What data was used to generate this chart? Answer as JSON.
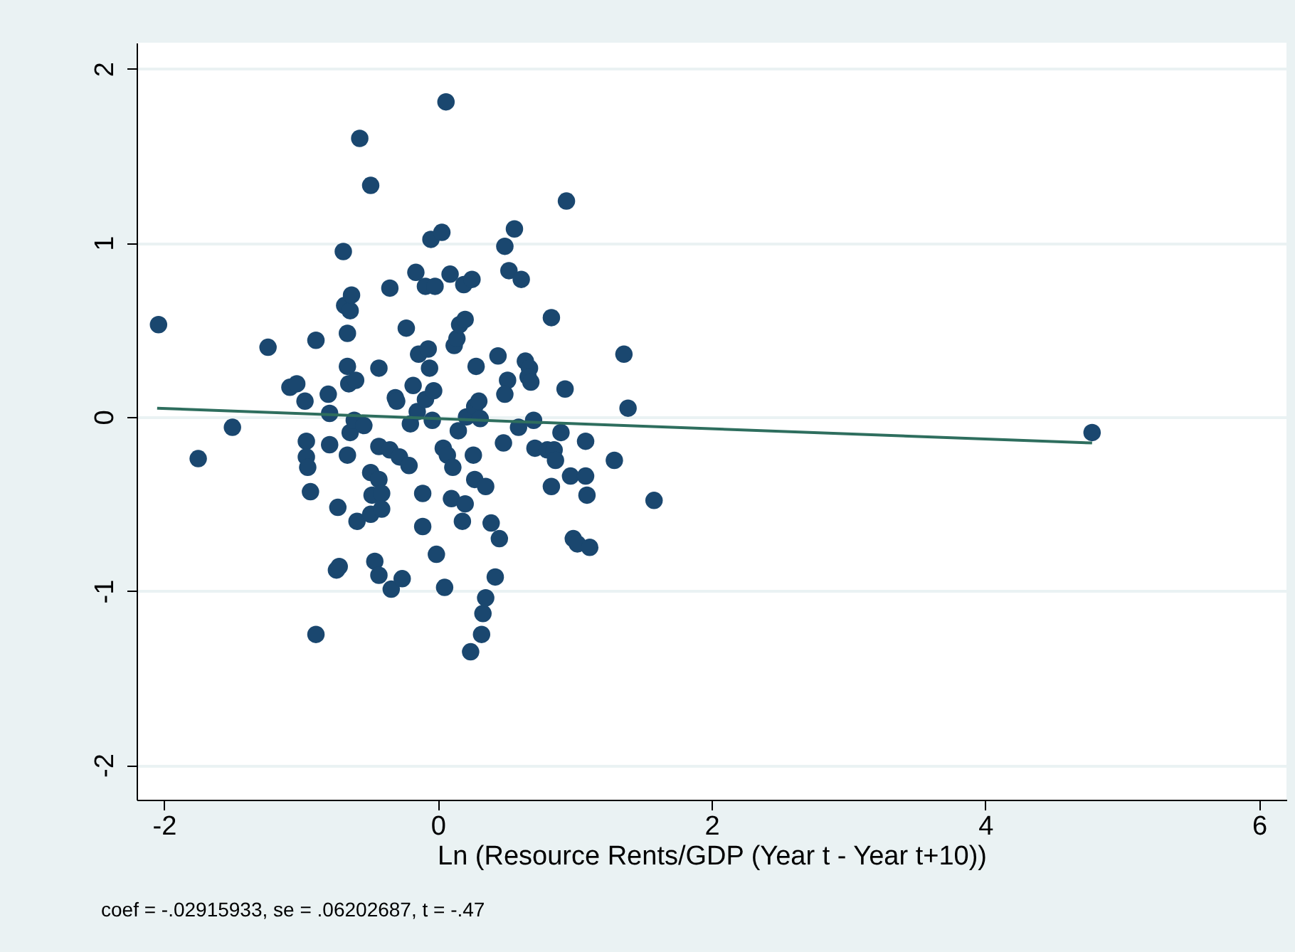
{
  "chart_data": {
    "type": "scatter",
    "xlabel": "Ln (Resource Rents/GDP (Year t - Year t+10))",
    "annotations": [
      "coef = -.02915933, se = .06202687, t = -.47"
    ],
    "xlim": [
      -2.2,
      6.2
    ],
    "ylim": [
      -2.2,
      2.15
    ],
    "xticks": [
      -2,
      0,
      2,
      4,
      6
    ],
    "yticks": [
      -2,
      -1,
      0,
      1,
      2
    ],
    "grid": "y",
    "series": [
      {
        "marker": "circle",
        "color": "#1a476f",
        "x": [
          -2.04,
          -1.75,
          -1.5,
          -1.24,
          -1.08,
          -1.03,
          -0.97,
          -0.96,
          -0.96,
          -0.95,
          -0.93,
          -0.89,
          -0.89,
          -0.8,
          -0.79,
          -0.79,
          -0.73,
          -0.74,
          -0.72,
          -0.69,
          -0.68,
          -0.66,
          -0.66,
          -0.64,
          -0.63,
          -0.65,
          -0.6,
          -0.64,
          -0.66,
          -0.61,
          -0.59,
          -0.57,
          -0.54,
          -0.49,
          -0.49,
          -0.48,
          -0.49,
          -0.46,
          -0.43,
          -0.43,
          -0.41,
          -0.41,
          -0.43,
          -0.43,
          -0.35,
          -0.34,
          -0.35,
          -0.31,
          -0.3,
          -0.28,
          -0.26,
          -0.23,
          -0.21,
          -0.2,
          -0.18,
          -0.16,
          -0.15,
          -0.14,
          -0.11,
          -0.11,
          -0.09,
          -0.09,
          -0.07,
          -0.06,
          -0.05,
          -0.04,
          -0.03,
          -0.02,
          -0.01,
          0.03,
          0.04,
          0.05,
          0.06,
          0.07,
          0.09,
          0.1,
          0.11,
          0.12,
          0.14,
          0.16,
          0.15,
          0.18,
          0.2,
          0.2,
          0.19,
          0.21,
          0.24,
          0.25,
          0.26,
          0.27,
          0.28,
          0.27,
          0.3,
          0.31,
          0.32,
          0.33,
          0.35,
          0.35,
          0.39,
          0.42,
          0.45,
          0.44,
          0.48,
          0.49,
          0.51,
          0.49,
          0.52,
          0.56,
          0.59,
          0.61,
          0.64,
          0.67,
          0.66,
          0.68,
          0.7,
          0.71,
          0.8,
          0.83,
          0.83,
          0.85,
          0.86,
          0.9,
          0.93,
          0.94,
          0.97,
          0.99,
          1.02,
          1.08,
          1.08,
          1.09,
          1.11,
          1.29,
          1.36,
          1.39,
          1.58,
          4.78
        ],
        "values": [
          0.53,
          -0.24,
          -0.06,
          0.4,
          0.17,
          0.19,
          0.09,
          -0.14,
          -0.23,
          -0.29,
          -0.43,
          0.44,
          -1.25,
          0.13,
          0.02,
          -0.16,
          -0.52,
          -0.88,
          -0.86,
          0.95,
          0.64,
          0.48,
          0.29,
          0.61,
          0.7,
          0.19,
          0.21,
          -0.09,
          -0.22,
          -0.02,
          -0.6,
          1.6,
          -0.05,
          1.33,
          -0.32,
          -0.45,
          -0.56,
          -0.83,
          -0.17,
          -0.36,
          -0.44,
          -0.53,
          -0.91,
          0.28,
          0.74,
          -0.99,
          -0.19,
          0.11,
          0.09,
          -0.23,
          -0.93,
          0.51,
          -0.28,
          -0.04,
          0.18,
          0.83,
          0.03,
          0.36,
          -0.63,
          -0.44,
          0.75,
          0.1,
          0.39,
          0.28,
          1.02,
          -0.02,
          0.15,
          0.75,
          -0.79,
          1.06,
          -0.18,
          -0.98,
          1.81,
          -0.22,
          0.82,
          -0.47,
          -0.29,
          0.41,
          0.45,
          0.53,
          -0.08,
          -0.6,
          0.56,
          -0.5,
          0.76,
          0.0,
          -1.35,
          0.79,
          -0.22,
          0.06,
          0.29,
          -0.36,
          0.09,
          -0.01,
          -1.25,
          -1.13,
          -1.04,
          -0.4,
          -0.61,
          -0.92,
          -0.7,
          0.35,
          -0.15,
          0.98,
          0.21,
          0.13,
          0.84,
          1.08,
          -0.06,
          0.79,
          0.32,
          0.28,
          0.23,
          0.2,
          -0.02,
          -0.18,
          -0.19,
          0.57,
          -0.4,
          -0.19,
          -0.25,
          -0.09,
          0.16,
          1.24,
          -0.34,
          -0.7,
          -0.73,
          -0.14,
          -0.34,
          -0.45,
          -0.75,
          -0.25,
          0.36,
          0.05,
          -0.48,
          -0.09
        ]
      },
      {
        "type": "line",
        "color": "#2e6e5e",
        "x": [
          -2.05,
          4.78
        ],
        "values": [
          0.05,
          -0.15
        ]
      }
    ]
  }
}
